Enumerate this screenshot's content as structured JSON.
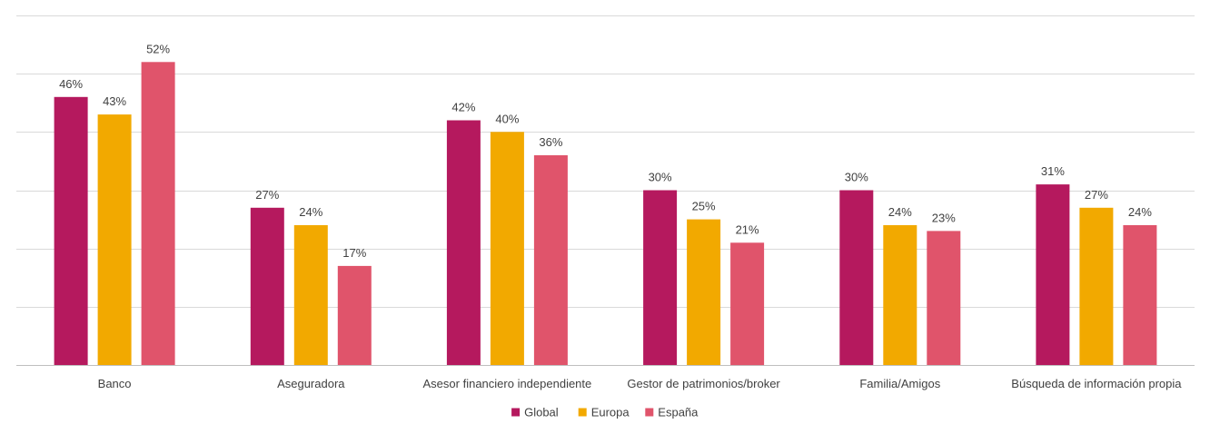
{
  "chart_data": {
    "type": "bar",
    "categories": [
      "Banco",
      "Aseguradora",
      "Asesor financiero independiente",
      "Gestor de patrimonios/broker",
      "Familia/Amigos",
      "Búsqueda de información propia"
    ],
    "series": [
      {
        "name": "Global",
        "color": "#b5195e",
        "values": [
          46,
          27,
          42,
          30,
          30,
          31
        ]
      },
      {
        "name": "Europa",
        "color": "#f2a900",
        "values": [
          43,
          24,
          40,
          25,
          24,
          27
        ]
      },
      {
        "name": "España",
        "color": "#e0546b",
        "values": [
          52,
          17,
          36,
          21,
          23,
          24
        ]
      }
    ],
    "value_suffix": "%",
    "ylim": [
      0,
      60
    ],
    "grid": true,
    "legend_position": "bottom"
  }
}
